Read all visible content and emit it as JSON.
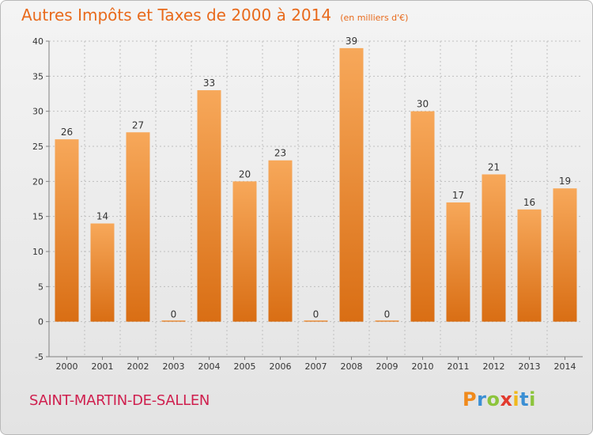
{
  "title": "Autres Impôts et Taxes de 2000 à 2014",
  "unit": "(en milliers d'€)",
  "commune": "SAINT-MARTIN-DE-SALLEN",
  "brand": {
    "text": "Proxiti",
    "letter_colors": [
      "#f08a1c",
      "#3b8fd4",
      "#8cc43c",
      "#e23a2e",
      "#f0b81c",
      "#3b8fd4",
      "#8cc43c"
    ]
  },
  "colors": {
    "bar_top": "#f7a85a",
    "bar_bottom": "#d96e14",
    "title": "#e86a1c",
    "commune": "#cf1f4e",
    "grid": "#bfbfbf",
    "axis": "#808080"
  },
  "chart_data": {
    "type": "bar",
    "categories": [
      "2000",
      "2001",
      "2002",
      "2003",
      "2004",
      "2005",
      "2006",
      "2007",
      "2008",
      "2009",
      "2010",
      "2011",
      "2012",
      "2013",
      "2014"
    ],
    "values": [
      26,
      14,
      27,
      0,
      33,
      20,
      23,
      0,
      39,
      0,
      30,
      17,
      21,
      16,
      19
    ],
    "title": "Autres Impôts et Taxes de 2000 à 2014",
    "xlabel": "",
    "ylabel": "",
    "ylim": [
      -5,
      40
    ],
    "yticks": [
      -5,
      0,
      5,
      10,
      15,
      20,
      25,
      30,
      35,
      40
    ],
    "grid": true,
    "data_labels": true
  }
}
